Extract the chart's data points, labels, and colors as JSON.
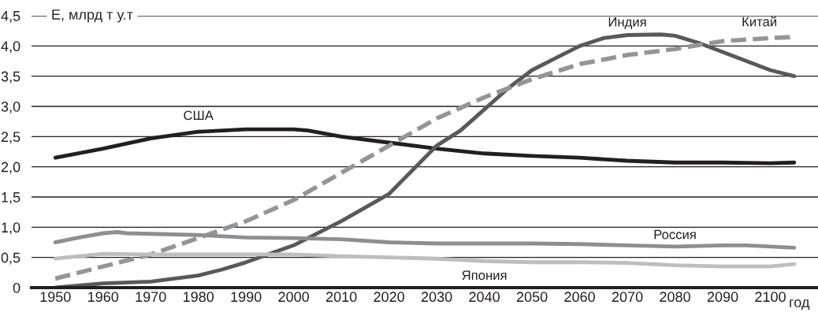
{
  "chart_data": {
    "type": "line",
    "ylabel": "E, млрд т у.т",
    "xlabel": "год",
    "xlim": [
      1945,
      2110
    ],
    "ylim": [
      0,
      4.5
    ],
    "xticks": [
      1950,
      1960,
      1970,
      1980,
      1990,
      2000,
      2010,
      2020,
      2030,
      2040,
      2050,
      2060,
      2070,
      2080,
      2090,
      2100
    ],
    "yticks": [
      {
        "value": 0,
        "label": "0"
      },
      {
        "value": 0.5,
        "label": "0,5"
      },
      {
        "value": 1.0,
        "label": "1,0"
      },
      {
        "value": 1.5,
        "label": "1,5"
      },
      {
        "value": 2.0,
        "label": "2,0"
      },
      {
        "value": 2.5,
        "label": "2,5"
      },
      {
        "value": 3.0,
        "label": "3,0"
      },
      {
        "value": 3.5,
        "label": "3,5"
      },
      {
        "value": 4.0,
        "label": "4,0"
      },
      {
        "value": 4.5,
        "label": "4,5"
      }
    ],
    "grid": "y",
    "marker": "none",
    "series": [
      {
        "name": "США",
        "color": "#231f20",
        "line_style": "solid",
        "x": [
          1950,
          1960,
          1970,
          1980,
          1990,
          2000,
          2003,
          2010,
          2020,
          2030,
          2040,
          2050,
          2060,
          2070,
          2080,
          2090,
          2100,
          2105
        ],
        "values": [
          2.15,
          2.3,
          2.47,
          2.58,
          2.62,
          2.62,
          2.6,
          2.5,
          2.4,
          2.3,
          2.22,
          2.18,
          2.15,
          2.1,
          2.07,
          2.07,
          2.06,
          2.07
        ]
      },
      {
        "name": "Индия",
        "color": "#58595b",
        "line_style": "solid",
        "x": [
          1950,
          1960,
          1970,
          1980,
          1985,
          1990,
          2000,
          2010,
          2020,
          2025,
          2030,
          2035,
          2040,
          2045,
          2050,
          2055,
          2060,
          2065,
          2070,
          2077,
          2080,
          2085,
          2090,
          2100,
          2105
        ],
        "values": [
          0.0,
          0.07,
          0.1,
          0.2,
          0.3,
          0.42,
          0.7,
          1.1,
          1.55,
          1.95,
          2.35,
          2.6,
          2.95,
          3.3,
          3.6,
          3.8,
          4.0,
          4.13,
          4.18,
          4.19,
          4.17,
          4.05,
          3.9,
          3.6,
          3.5
        ]
      },
      {
        "name": "Китай",
        "color": "#939598",
        "line_style": "dashed",
        "x": [
          1950,
          1960,
          1970,
          1980,
          1990,
          2000,
          2010,
          2020,
          2030,
          2040,
          2050,
          2060,
          2070,
          2080,
          2090,
          2100,
          2105
        ],
        "values": [
          0.15,
          0.35,
          0.55,
          0.82,
          1.1,
          1.45,
          1.9,
          2.35,
          2.8,
          3.15,
          3.45,
          3.7,
          3.85,
          3.95,
          4.08,
          4.13,
          4.15
        ]
      },
      {
        "name": "Россия",
        "color": "#8c8e90",
        "line_style": "solid",
        "x": [
          1950,
          1955,
          1960,
          1963,
          1965,
          1980,
          1990,
          2000,
          2010,
          2020,
          2030,
          2040,
          2050,
          2060,
          2070,
          2080,
          2090,
          2095,
          2105
        ],
        "values": [
          0.75,
          0.83,
          0.9,
          0.92,
          0.9,
          0.87,
          0.83,
          0.82,
          0.8,
          0.75,
          0.73,
          0.73,
          0.73,
          0.72,
          0.7,
          0.68,
          0.7,
          0.7,
          0.66
        ]
      },
      {
        "name": "Япония",
        "color": "#bcbec0",
        "line_style": "solid",
        "x": [
          1950,
          1960,
          1970,
          1980,
          2000,
          2010,
          2020,
          2030,
          2040,
          2050,
          2060,
          2070,
          2080,
          2090,
          2100,
          2105
        ],
        "values": [
          0.48,
          0.56,
          0.55,
          0.55,
          0.55,
          0.52,
          0.5,
          0.48,
          0.44,
          0.42,
          0.42,
          0.41,
          0.37,
          0.35,
          0.35,
          0.39
        ]
      }
    ]
  }
}
